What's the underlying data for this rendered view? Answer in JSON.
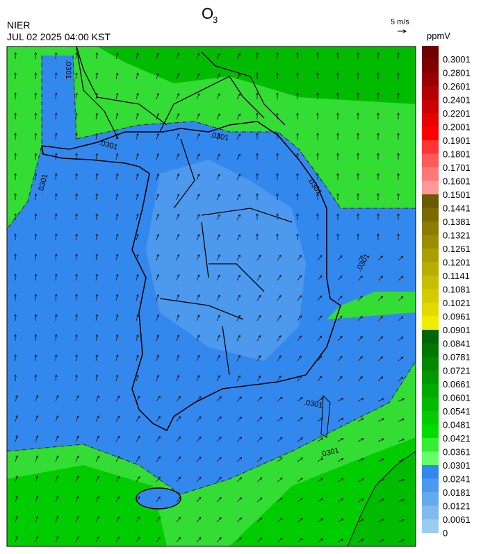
{
  "title": {
    "text": "O",
    "subscript": "3"
  },
  "agency": "NIER",
  "datetime": "JUL 02 2025 04:00 KST",
  "wind_scale": "5 m/s",
  "unit": "ppmV",
  "contour_labels": [
    ".0301",
    ".0301",
    ".0301",
    ".0301",
    ".0301",
    ".0301",
    ".0301",
    ".0301"
  ],
  "colorbar": {
    "ticks": [
      0.3001,
      0.2801,
      0.2601,
      0.2401,
      0.2201,
      0.2001,
      0.1901,
      0.1801,
      0.1701,
      0.1601,
      0.1501,
      0.1441,
      0.1381,
      0.1321,
      0.1261,
      0.1201,
      0.1141,
      0.1081,
      0.1021,
      0.0961,
      0.0901,
      0.0841,
      0.0781,
      0.0721,
      0.0661,
      0.0601,
      0.0541,
      0.0481,
      0.0421,
      0.0361,
      0.0301,
      0.0241,
      0.0181,
      0.0121,
      0.0061,
      0
    ],
    "colors": [
      "#6e0000",
      "#800000",
      "#990000",
      "#b30000",
      "#cc0000",
      "#e60000",
      "#ff0000",
      "#ff3535",
      "#ff5a5a",
      "#ff7878",
      "#ff9999",
      "#6b5a00",
      "#7a6a00",
      "#8a7c00",
      "#9a8e00",
      "#aa9e00",
      "#b8ae00",
      "#c6be00",
      "#d4cc00",
      "#e2da00",
      "#f0ee00",
      "#006600",
      "#007700",
      "#008800",
      "#009900",
      "#00aa00",
      "#00bb00",
      "#00cc00",
      "#00dd00",
      "#33ee33",
      "#66ff66",
      "#3388ee",
      "#4d99ee",
      "#66aaee",
      "#80bbee",
      "#99ccee"
    ]
  }
}
